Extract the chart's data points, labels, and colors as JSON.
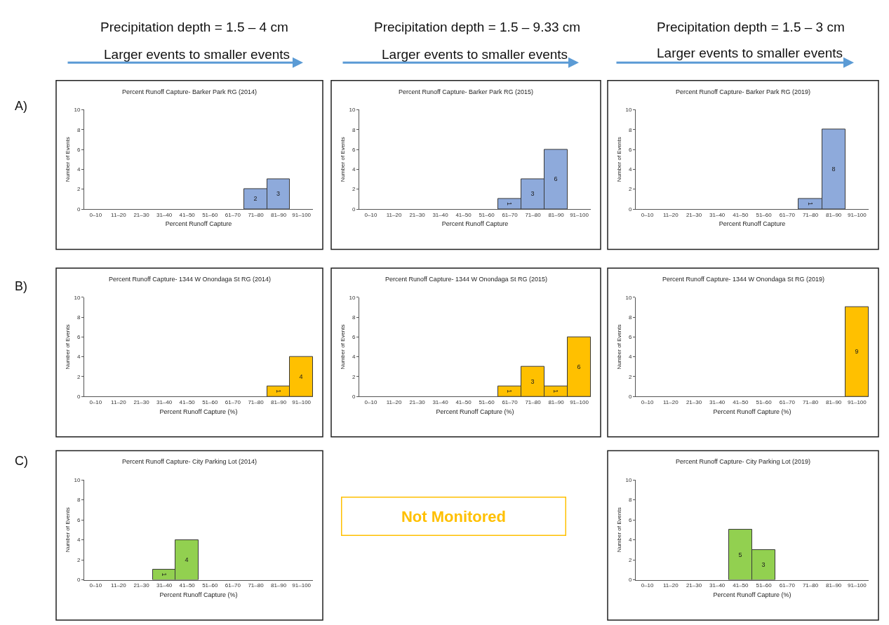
{
  "chart_data": [
    {
      "type": "other",
      "annotations": [
        "Precipitation depth = 1.5 – 4 cm",
        "Larger events to smaller events",
        "Precipitation depth = 1.5 – 9.33 cm",
        "Larger events to smaller events",
        "Precipitation depth = 1.5 – 3 cm",
        "Larger events to smaller events",
        "A)",
        "B)",
        "C)"
      ]
    },
    {
      "type": "bar",
      "title": "Percent Runoff Capture- Barker Park RG (2014)",
      "xlabel": "Percent Runoff Capture",
      "ylabel": "Number of Events",
      "categories": [
        "0–10",
        "11–20",
        "21–30",
        "31–40",
        "41–50",
        "51–60",
        "61–70",
        "71–80",
        "81–90",
        "91–100"
      ],
      "values": [
        0,
        0,
        0,
        0,
        0,
        0,
        0,
        2,
        3,
        0
      ],
      "value_labels": [
        null,
        null,
        null,
        null,
        null,
        null,
        null,
        "2",
        "3",
        null
      ],
      "color": "#8eaadb",
      "ylim": [
        0,
        10
      ],
      "yticks": [
        0,
        2,
        4,
        6,
        8,
        10
      ],
      "grid": false
    },
    {
      "type": "bar",
      "title": "Percent Runoff Capture- Barker Park RG (2015)",
      "xlabel": "Percent Runoff Capture",
      "ylabel": "Number of Events",
      "categories": [
        "0–10",
        "11–20",
        "21–30",
        "31–40",
        "41–50",
        "51–60",
        "61–70",
        "71–80",
        "81–90",
        "91–100"
      ],
      "values": [
        0,
        0,
        0,
        0,
        0,
        0,
        1,
        3,
        6,
        0
      ],
      "value_labels": [
        null,
        null,
        null,
        null,
        null,
        null,
        "1",
        "3",
        "6",
        null
      ],
      "color": "#8eaadb",
      "ylim": [
        0,
        10
      ],
      "yticks": [
        0,
        2,
        4,
        6,
        8,
        10
      ],
      "grid": false
    },
    {
      "type": "bar",
      "title": "Percent Runoff Capture- Barker Park RG (2019)",
      "xlabel": "Percent Runoff Capture",
      "ylabel": "Number of Events",
      "categories": [
        "0–10",
        "11–20",
        "21–30",
        "31–40",
        "41–50",
        "51–60",
        "61–70",
        "71–80",
        "81–90",
        "91–100"
      ],
      "values": [
        0,
        0,
        0,
        0,
        0,
        0,
        0,
        1,
        8,
        0
      ],
      "value_labels": [
        null,
        null,
        null,
        null,
        null,
        null,
        null,
        "1",
        "8",
        null
      ],
      "color": "#8eaadb",
      "ylim": [
        0,
        10
      ],
      "yticks": [
        0,
        2,
        4,
        6,
        8,
        10
      ],
      "grid": false
    },
    {
      "type": "bar",
      "title": "Percent Runoff Capture- 1344 W Onondaga St RG (2014)",
      "xlabel": "Percent Runoff Capture (%)",
      "ylabel": "Number of Events",
      "categories": [
        "0–10",
        "11–20",
        "21–30",
        "31–40",
        "41–50",
        "51–60",
        "61–70",
        "71–80",
        "81–90",
        "91–100"
      ],
      "values": [
        0,
        0,
        0,
        0,
        0,
        0,
        0,
        0,
        1,
        4
      ],
      "value_labels": [
        null,
        null,
        null,
        null,
        null,
        null,
        null,
        null,
        "1",
        "4"
      ],
      "color": "#ffc000",
      "ylim": [
        0,
        10
      ],
      "yticks": [
        0,
        2,
        4,
        6,
        8,
        10
      ],
      "grid": false
    },
    {
      "type": "bar",
      "title": "Percent Runoff Capture- 1344 W Onondaga St RG (2015)",
      "xlabel": "Percent Runoff Capture (%)",
      "ylabel": "Number of Events",
      "categories": [
        "0–10",
        "11–20",
        "21–30",
        "31–40",
        "41–50",
        "51–60",
        "61–70",
        "71–80",
        "81–90",
        "91–100"
      ],
      "values": [
        0,
        0,
        0,
        0,
        0,
        0,
        1,
        3,
        1,
        6
      ],
      "value_labels": [
        null,
        null,
        null,
        null,
        null,
        null,
        "1",
        "3",
        "1",
        "6"
      ],
      "color": "#ffc000",
      "ylim": [
        0,
        10
      ],
      "yticks": [
        0,
        2,
        4,
        6,
        8,
        10
      ],
      "grid": false
    },
    {
      "type": "bar",
      "title": "Percent Runoff Capture- 1344 W Onondaga St RG (2019)",
      "xlabel": "Percent Runoff Capture (%)",
      "ylabel": "Number of Events",
      "categories": [
        "0–10",
        "11–20",
        "21–30",
        "31–40",
        "41–50",
        "51–60",
        "61–70",
        "71–80",
        "81–90",
        "91–100"
      ],
      "values": [
        0,
        0,
        0,
        0,
        0,
        0,
        0,
        0,
        0,
        9
      ],
      "value_labels": [
        null,
        null,
        null,
        null,
        null,
        null,
        null,
        null,
        null,
        "9"
      ],
      "color": "#ffc000",
      "ylim": [
        0,
        10
      ],
      "yticks": [
        0,
        2,
        4,
        6,
        8,
        10
      ],
      "grid": false
    },
    {
      "type": "bar",
      "title": "Percent Runoff Capture- City Parking Lot (2014)",
      "xlabel": "Percent Runoff Capture (%)",
      "ylabel": "Number of Events",
      "categories": [
        "0–10",
        "11–20",
        "21–30",
        "31–40",
        "41–50",
        "51–60",
        "61–70",
        "71–80",
        "81–90",
        "91–100"
      ],
      "values": [
        0,
        0,
        0,
        1,
        4,
        0,
        0,
        0,
        0,
        0
      ],
      "value_labels": [
        null,
        null,
        null,
        "1",
        "4",
        null,
        null,
        null,
        null,
        null
      ],
      "color": "#92d050",
      "ylim": [
        0,
        10
      ],
      "yticks": [
        0,
        2,
        4,
        6,
        8,
        10
      ],
      "grid": false
    },
    {
      "type": "other",
      "annotations": [
        "Not Monitored"
      ]
    },
    {
      "type": "bar",
      "title": "Percent Runoff Capture- City Parking Lot (2019)",
      "xlabel": "Percent Runoff Capture (%)",
      "ylabel": "Number of Events",
      "categories": [
        "0–10",
        "11–20",
        "21–30",
        "31–40",
        "41–50",
        "51–60",
        "61–70",
        "71–80",
        "81–90",
        "91–100"
      ],
      "values": [
        0,
        0,
        0,
        0,
        5,
        3,
        0,
        0,
        0,
        0
      ],
      "value_labels": [
        null,
        null,
        null,
        null,
        "5",
        "3",
        null,
        null,
        null,
        null
      ],
      "color": "#92d050",
      "ylim": [
        0,
        10
      ],
      "yticks": [
        0,
        2,
        4,
        6,
        8,
        10
      ],
      "grid": false
    }
  ]
}
